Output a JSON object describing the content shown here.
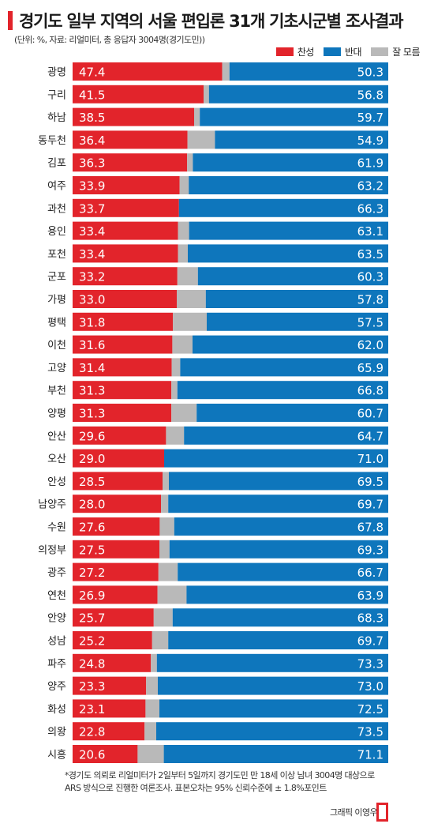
{
  "header": {
    "title": "경기도 일부 지역의 서울 편입론 31개 기초시군별 조사결과",
    "subtitle": "(단위: %, 자료: 리얼미터, 총 응답자 3004명(경기도민))"
  },
  "legend": {
    "items": [
      {
        "label": "찬성",
        "color": "#e2242b"
      },
      {
        "label": "반대",
        "color": "#0e76bc"
      },
      {
        "label": "잘 모름",
        "color": "#b9b9b9"
      }
    ]
  },
  "chart_data": {
    "type": "bar",
    "orientation": "horizontal-stacked-100",
    "xlim": [
      0,
      100
    ],
    "categories": [
      "광명",
      "구리",
      "하남",
      "동두천",
      "김포",
      "여주",
      "과천",
      "용인",
      "포천",
      "군포",
      "가평",
      "평택",
      "이천",
      "고양",
      "부천",
      "양평",
      "안산",
      "오산",
      "안성",
      "남양주",
      "수원",
      "의정부",
      "광주",
      "연천",
      "안양",
      "성남",
      "파주",
      "양주",
      "화성",
      "의왕",
      "시흥"
    ],
    "series": [
      {
        "name": "찬성",
        "color": "#e2242b",
        "values": [
          47.4,
          41.5,
          38.5,
          36.4,
          36.3,
          33.9,
          33.7,
          33.4,
          33.4,
          33.2,
          33.0,
          31.8,
          31.6,
          31.4,
          31.3,
          31.3,
          29.6,
          29.0,
          28.5,
          28.0,
          27.6,
          27.5,
          27.2,
          26.9,
          25.7,
          25.2,
          24.8,
          23.3,
          23.1,
          22.8,
          20.6
        ]
      },
      {
        "name": "잘 모름",
        "color": "#b9b9b9",
        "values": [
          2.3,
          1.7,
          1.8,
          8.7,
          1.8,
          2.9,
          0.0,
          3.5,
          3.1,
          6.5,
          9.2,
          10.7,
          6.4,
          2.7,
          1.9,
          8.0,
          5.7,
          0.0,
          2.0,
          2.3,
          4.6,
          3.2,
          6.1,
          9.2,
          6.0,
          5.1,
          1.9,
          3.7,
          4.4,
          3.7,
          8.3
        ]
      },
      {
        "name": "반대",
        "color": "#0e76bc",
        "values": [
          50.3,
          56.8,
          59.7,
          54.9,
          61.9,
          63.2,
          66.3,
          63.1,
          63.5,
          60.3,
          57.8,
          57.5,
          62.0,
          65.9,
          66.8,
          60.7,
          64.7,
          71.0,
          69.5,
          69.7,
          67.8,
          69.3,
          66.7,
          63.9,
          68.3,
          69.7,
          73.3,
          73.0,
          72.5,
          73.5,
          71.1
        ]
      }
    ],
    "labels_for": [
      "찬성",
      "반대"
    ]
  },
  "footnote": {
    "line1": "*경기도 의뢰로 리얼미터가 2일부터 5일까지 경기도민 만 18세 이상 남녀 3004명 대상으로",
    "line2": "ARS 방식으로 진행한 여론조사. 표본오차는 95% 신뢰수준에 ± 1.8%포인트"
  },
  "credit": "그래픽 이영우"
}
